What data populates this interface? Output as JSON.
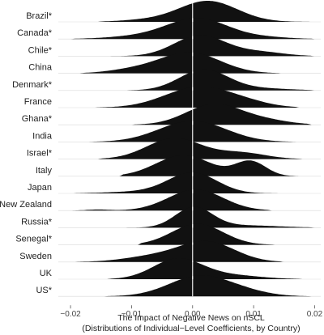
{
  "chart_data": {
    "type": "ridgeline",
    "xlabel": "The Impact of Negative News on nSCL",
    "xlabel_sub": "(Distributions of Individual−Level Coefficients, by Country)",
    "xlim": [
      -0.022,
      0.021
    ],
    "xticks": [
      {
        "value": -0.02,
        "label": "−0.02"
      },
      {
        "value": -0.01,
        "label": "−0.01"
      },
      {
        "value": 0.0,
        "label": "0.00"
      },
      {
        "value": 0.01,
        "label": "0.01"
      },
      {
        "value": 0.02,
        "label": "0.02"
      }
    ],
    "zero_line": 0.0,
    "colors": {
      "fill": "#111111",
      "zero_line": "#ffffff",
      "baseline": "#d9d9d9"
    },
    "series": [
      {
        "name": "Brazil*",
        "min": -0.0155,
        "max": 0.0195,
        "components": [
          {
            "mean": 0.0025,
            "sd": 0.0048,
            "weight": 1.0
          },
          {
            "mean": -0.008,
            "sd": 0.004,
            "weight": 0.08
          }
        ]
      },
      {
        "name": "Canada*",
        "min": -0.02,
        "max": 0.02,
        "components": [
          {
            "mean": 0.0008,
            "sd": 0.005,
            "weight": 1.0
          },
          {
            "mean": -0.009,
            "sd": 0.005,
            "weight": 0.12
          },
          {
            "mean": 0.012,
            "sd": 0.004,
            "weight": 0.08
          }
        ]
      },
      {
        "name": "Chile*",
        "min": -0.014,
        "max": 0.02,
        "components": [
          {
            "mean": 0.0012,
            "sd": 0.0042,
            "weight": 1.0
          },
          {
            "mean": 0.011,
            "sd": 0.004,
            "weight": 0.2
          }
        ]
      },
      {
        "name": "China",
        "min": -0.0185,
        "max": 0.0145,
        "components": [
          {
            "mean": -0.0005,
            "sd": 0.005,
            "weight": 1.0
          },
          {
            "mean": -0.01,
            "sd": 0.004,
            "weight": 0.15
          }
        ]
      },
      {
        "name": "Denmark*",
        "min": -0.011,
        "max": 0.02,
        "components": [
          {
            "mean": 0.0018,
            "sd": 0.004,
            "weight": 1.0
          },
          {
            "mean": 0.011,
            "sd": 0.005,
            "weight": 0.1
          }
        ]
      },
      {
        "name": "France",
        "min": -0.016,
        "max": 0.0175,
        "components": [
          {
            "mean": 0.001,
            "sd": 0.0055,
            "weight": 1.0
          },
          {
            "mean": 0.009,
            "sd": 0.004,
            "weight": 0.15
          }
        ]
      },
      {
        "name": "Ghana*",
        "min": -0.01,
        "max": 0.0195,
        "components": [
          {
            "mean": 0.0035,
            "sd": 0.0045,
            "weight": 1.0
          },
          {
            "mean": 0.012,
            "sd": 0.004,
            "weight": 0.2
          }
        ]
      },
      {
        "name": "India",
        "min": -0.017,
        "max": 0.017,
        "components": [
          {
            "mean": 0.0,
            "sd": 0.0055,
            "weight": 1.0
          }
        ]
      },
      {
        "name": "Israel*",
        "min": -0.0155,
        "max": 0.018,
        "components": [
          {
            "mean": -0.003,
            "sd": 0.0045,
            "weight": 1.0
          },
          {
            "mean": 0.008,
            "sd": 0.004,
            "weight": 0.3
          }
        ]
      },
      {
        "name": "Italy",
        "min": -0.012,
        "max": 0.0185,
        "components": [
          {
            "mean": -0.0015,
            "sd": 0.0045,
            "weight": 1.0
          },
          {
            "mean": 0.0095,
            "sd": 0.0025,
            "weight": 0.7
          }
        ]
      },
      {
        "name": "Japan",
        "min": -0.0195,
        "max": 0.0145,
        "components": [
          {
            "mean": 0.0,
            "sd": 0.004,
            "weight": 1.0
          },
          {
            "mean": -0.009,
            "sd": 0.005,
            "weight": 0.08
          }
        ]
      },
      {
        "name": "New Zealand",
        "min": -0.02,
        "max": 0.013,
        "components": [
          {
            "mean": 0.0005,
            "sd": 0.0045,
            "weight": 1.0
          },
          {
            "mean": -0.0155,
            "sd": 0.0018,
            "weight": 0.05
          }
        ]
      },
      {
        "name": "Russia*",
        "min": -0.017,
        "max": 0.02,
        "components": [
          {
            "mean": 0.0002,
            "sd": 0.003,
            "weight": 1.0
          },
          {
            "mean": 0.008,
            "sd": 0.006,
            "weight": 0.12
          }
        ]
      },
      {
        "name": "Senegal*",
        "min": -0.009,
        "max": 0.0135,
        "components": [
          {
            "mean": 0.0008,
            "sd": 0.0042,
            "weight": 1.0
          }
        ]
      },
      {
        "name": "Sweden",
        "min": -0.0195,
        "max": 0.015,
        "components": [
          {
            "mean": 0.0025,
            "sd": 0.0045,
            "weight": 1.0
          },
          {
            "mean": -0.006,
            "sd": 0.005,
            "weight": 0.3
          }
        ]
      },
      {
        "name": "UK",
        "min": -0.014,
        "max": 0.018,
        "components": [
          {
            "mean": -0.0025,
            "sd": 0.004,
            "weight": 1.0
          },
          {
            "mean": 0.006,
            "sd": 0.005,
            "weight": 0.2
          }
        ]
      },
      {
        "name": "US*",
        "min": -0.0145,
        "max": 0.0195,
        "components": [
          {
            "mean": 0.0012,
            "sd": 0.005,
            "weight": 1.0
          },
          {
            "mean": 0.009,
            "sd": 0.004,
            "weight": 0.15
          }
        ]
      }
    ]
  }
}
